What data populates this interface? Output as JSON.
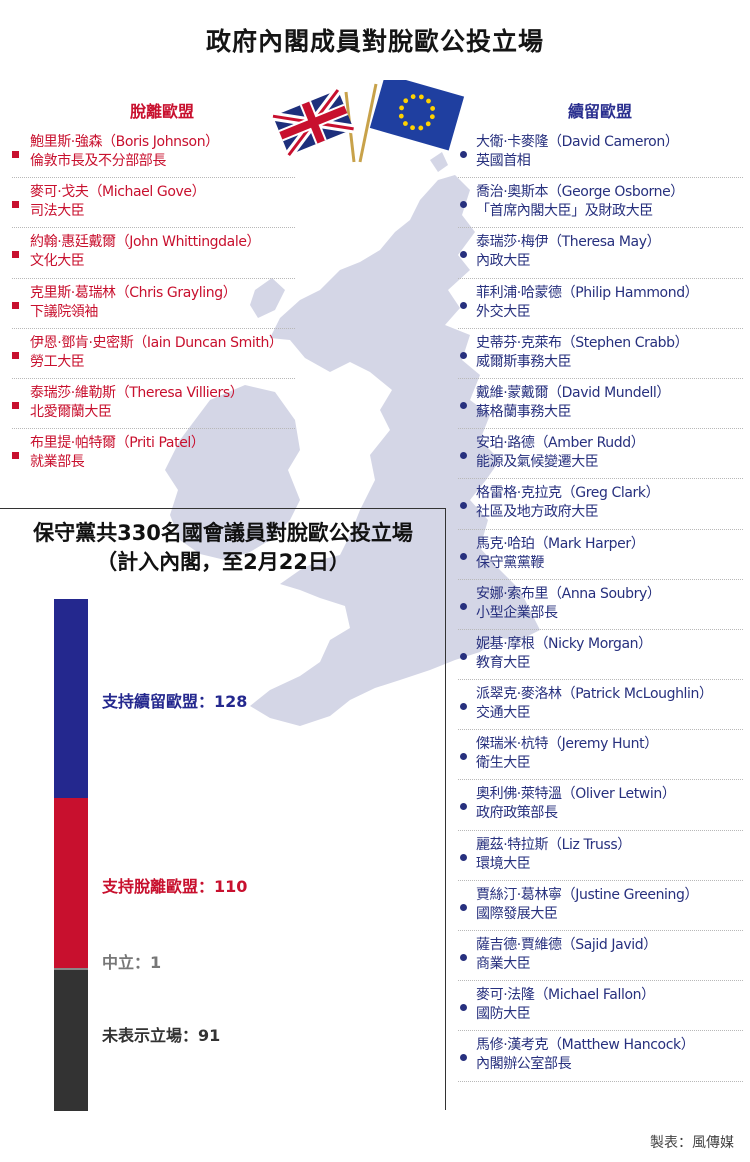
{
  "title": "政府內閣成員對脫歐公投立場",
  "leave": {
    "heading": "脫離歐盟",
    "members": [
      {
        "name": "鮑里斯·強森（Boris Johnson）",
        "role": "倫敦市長及不分部部長"
      },
      {
        "name": "麥可·戈夫（Michael Gove）",
        "role": "司法大臣"
      },
      {
        "name": "約翰·惠廷戴爾（John Whittingdale）",
        "role": "文化大臣"
      },
      {
        "name": "克里斯·葛瑞林（Chris Grayling）",
        "role": "下議院領袖"
      },
      {
        "name": "伊恩·鄧肯·史密斯（Iain Duncan Smith）",
        "role": "勞工大臣"
      },
      {
        "name": "泰瑞莎·維勒斯（Theresa Villiers）",
        "role": "北愛爾蘭大臣"
      },
      {
        "name": "布里提·帕特爾（Priti Patel）",
        "role": "就業部長"
      }
    ]
  },
  "remain": {
    "heading": "續留歐盟",
    "members": [
      {
        "name": "大衛·卡麥隆（David Cameron）",
        "role": "英國首相"
      },
      {
        "name": "喬治·奧斯本（George Osborne）",
        "role": "「首席內閣大臣」及財政大臣"
      },
      {
        "name": "泰瑞莎·梅伊（Theresa May）",
        "role": "內政大臣"
      },
      {
        "name": "菲利浦·哈蒙德（Philip Hammond）",
        "role": "外交大臣"
      },
      {
        "name": "史蒂芬·克萊布（Stephen Crabb）",
        "role": "威爾斯事務大臣"
      },
      {
        "name": "戴維·蒙戴爾（David Mundell）",
        "role": "蘇格蘭事務大臣"
      },
      {
        "name": "安珀·路德（Amber Rudd）",
        "role": "能源及氣候變遷大臣"
      },
      {
        "name": "格雷格·克拉克（Greg Clark）",
        "role": "社區及地方政府大臣"
      },
      {
        "name": "馬克·哈珀（Mark Harper）",
        "role": "保守黨黨鞭"
      },
      {
        "name": "安娜·索布里（Anna Soubry）",
        "role": "小型企業部長"
      },
      {
        "name": "妮基·摩根（Nicky Morgan）",
        "role": "教育大臣"
      },
      {
        "name": "派翠克·麥洛林（Patrick McLoughlin）",
        "role": "交通大臣"
      },
      {
        "name": "傑瑞米·杭特（Jeremy Hunt）",
        "role": "衛生大臣"
      },
      {
        "name": "奧利佛·萊特溫（Oliver Letwin）",
        "role": "政府政策部長"
      },
      {
        "name": "麗茲·特拉斯（Liz Truss）",
        "role": "環境大臣"
      },
      {
        "name": "賈絲汀·葛林寧（Justine Greening）",
        "role": "國際發展大臣"
      },
      {
        "name": "薩吉德·賈維德（Sajid Javid）",
        "role": "商業大臣"
      },
      {
        "name": "麥可·法隆（Michael Fallon）",
        "role": "國防大臣"
      },
      {
        "name": "馬修·漢考克（Matthew Hancock）",
        "role": "內閣辦公室部長"
      }
    ]
  },
  "chart_data": {
    "type": "bar",
    "orientation": "stacked-vertical",
    "title": "保守黨共330名國會議員對脫歐公投立場",
    "subtitle": "（計入內閣，至2月22日）",
    "total": 330,
    "segments": [
      {
        "label": "支持續留歐盟：128",
        "value": 128,
        "color": "#24288e"
      },
      {
        "label": "支持脫離歐盟：110",
        "value": 110,
        "color": "#c8102e"
      },
      {
        "label": "中立：1",
        "value": 1,
        "color": "#888888"
      },
      {
        "label": "未表示立場：91",
        "value": 91,
        "color": "#333333"
      }
    ]
  },
  "credit": "製表：風傳媒",
  "colors": {
    "leave": "#c8102e",
    "remain": "#27307e",
    "map": "#d4d6e6"
  }
}
